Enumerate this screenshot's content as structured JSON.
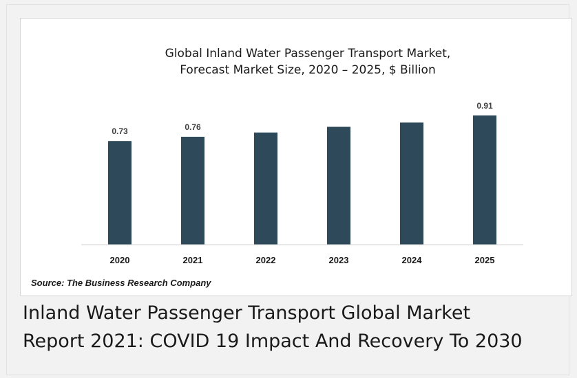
{
  "chart_data": {
    "type": "bar",
    "title": [
      "Global Inland Water Passenger Transport Market,",
      "Forecast Market Size, 2020 – 2025, $ Billion"
    ],
    "categories": [
      "2020",
      "2021",
      "2022",
      "2023",
      "2024",
      "2025"
    ],
    "values": [
      0.73,
      0.76,
      0.79,
      0.83,
      0.86,
      0.91
    ],
    "data_labels": [
      "0.73",
      "0.76",
      "",
      "",
      "",
      "0.91"
    ],
    "xlabel": "",
    "ylabel": "",
    "ylim": [
      0,
      0.91
    ],
    "grid": false,
    "legend": "none",
    "bar_color": "#2e4a5a"
  },
  "source": "Source: The Business Research Company",
  "caption": {
    "line1": "Inland Water Passenger Transport Global Market",
    "line2": "Report 2021: COVID 19 Impact And Recovery To 2030"
  }
}
